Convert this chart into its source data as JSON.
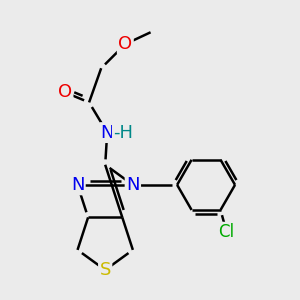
{
  "background_color": "#ebebeb",
  "atom_colors": {
    "C": "#000000",
    "N": "#0000ee",
    "O": "#ee0000",
    "S": "#ccbb00",
    "Cl": "#00aa00",
    "H": "#008888"
  },
  "bond_color": "#000000",
  "bond_width": 1.8,
  "font_size": 13,
  "dbl_sep": 0.12
}
